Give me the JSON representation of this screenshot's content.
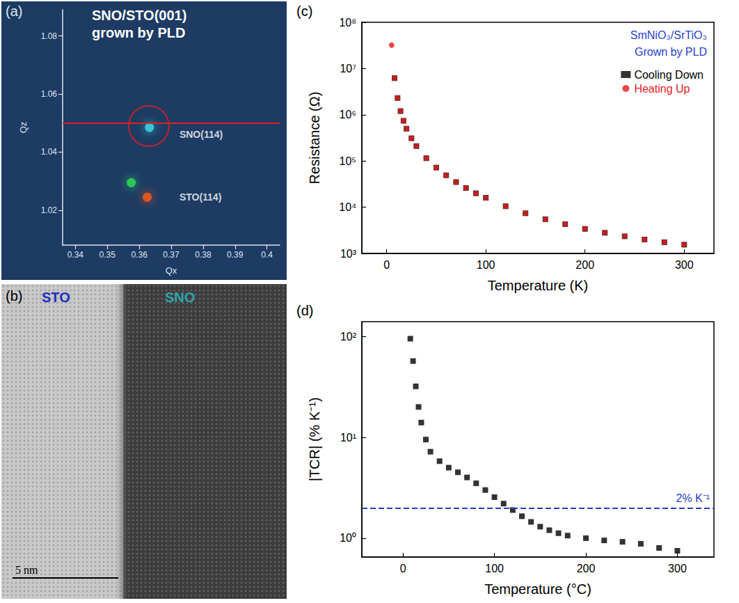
{
  "chart_data": [
    {
      "type": "scatter",
      "panel": "(a)",
      "title": [
        "SNO/STO(001)",
        "grown by PLD"
      ],
      "x_label": "Qx",
      "y_label": "Qz",
      "x": [
        0.3625,
        0.3632,
        0.3575
      ],
      "values": [
        1.0245,
        1.0485,
        1.0295
      ],
      "colors": [
        "#ff5a1a",
        "#3fd9e8",
        "#33dd55"
      ],
      "xlim": [
        0.336,
        0.404
      ],
      "ylim": [
        1.008,
        1.089
      ],
      "xticks": [
        0.34,
        0.35,
        0.36,
        0.37,
        0.38,
        0.39,
        0.4
      ],
      "yticks": [
        1.02,
        1.04,
        1.06,
        1.08
      ],
      "annotations": [
        {
          "text": "SNO(114)",
          "x": 0.3715,
          "y": 1.046
        },
        {
          "text": "STO(114)",
          "x": 0.3715,
          "y": 1.0245
        },
        {
          "shape": "circle",
          "x": 0.363,
          "y": 1.049
        },
        {
          "shape": "line",
          "y": 1.051
        }
      ]
    },
    {
      "type": "image",
      "panel": "(b)",
      "labels": [
        "STO",
        "SNO"
      ],
      "colors": [
        "#1f2fbf",
        "#2aa6a6"
      ],
      "scale_bar": "5 nm"
    },
    {
      "type": "scatter",
      "panel": "(c)",
      "x_label": "Temperature (K)",
      "y_label": "Resistance (Ω)",
      "annotations": [
        "SmNiO₃/SrTiO₃",
        "Grown by PLD"
      ],
      "log": "y",
      "legend": "upper right",
      "x": [
        5,
        8,
        11,
        14,
        17,
        20,
        25,
        30,
        40,
        50,
        60,
        70,
        80,
        90,
        100,
        120,
        140,
        160,
        180,
        200,
        220,
        240,
        260,
        280,
        300
      ],
      "series": [
        {
          "name": "Cooling Down",
          "color": "#000000",
          "marker": "square",
          "values": [
            null,
            6200000,
            2300000,
            1200000,
            740000,
            500000,
            310000,
            210000,
            115000,
            72000,
            49000,
            35000,
            26000,
            20000,
            16000,
            10500,
            7400,
            5500,
            4300,
            3400,
            2800,
            2350,
            2000,
            1750,
            1550
          ]
        },
        {
          "name": "Heating Up",
          "color": "#e41a1c",
          "marker": "circle",
          "values": [
            32000000,
            6200000,
            2300000,
            1200000,
            740000,
            500000,
            310000,
            210000,
            115000,
            72000,
            49000,
            35000,
            26000,
            20000,
            16000,
            10500,
            7400,
            5500,
            4300,
            3400,
            2800,
            2350,
            2000,
            1750,
            1550
          ]
        }
      ],
      "xlim": [
        -25,
        330
      ],
      "ylim": [
        1000,
        100000000
      ],
      "xticks": [
        0,
        100,
        200,
        300
      ],
      "yticks": [
        {
          "value": 1000,
          "label": "10³"
        },
        {
          "value": 10000,
          "label": "10⁴"
        },
        {
          "value": 100000,
          "label": "10⁵"
        },
        {
          "value": 1000000,
          "label": "10⁶"
        },
        {
          "value": 10000000,
          "label": "10⁷"
        },
        {
          "value": 100000000,
          "label": "10⁸"
        }
      ]
    },
    {
      "type": "scatter",
      "panel": "(d)",
      "x_label": "Temperature (°C)",
      "y_label": "|TCR| (% K⁻¹)",
      "log": "y",
      "color": "#000000",
      "marker": "square",
      "x": [
        8,
        11,
        14,
        17,
        20,
        25,
        30,
        40,
        50,
        60,
        70,
        80,
        90,
        100,
        110,
        120,
        130,
        140,
        150,
        160,
        170,
        180,
        200,
        220,
        240,
        260,
        280,
        300
      ],
      "values": [
        95,
        57,
        32,
        20,
        14,
        9.5,
        7.2,
        5.8,
        5.0,
        4.5,
        4.0,
        3.5,
        3.0,
        2.55,
        2.2,
        1.9,
        1.65,
        1.45,
        1.3,
        1.2,
        1.12,
        1.06,
        1.0,
        0.95,
        0.92,
        0.88,
        0.8,
        0.75
      ],
      "xlim": [
        -45,
        340
      ],
      "ylim": [
        0.65,
        140
      ],
      "xticks": [
        0,
        100,
        200,
        300
      ],
      "yticks": [
        {
          "value": 1,
          "label": "10⁰"
        },
        {
          "value": 10,
          "label": "10¹"
        },
        {
          "value": 100,
          "label": "10²"
        }
      ],
      "reference_line": {
        "value": 2,
        "label": "2% K⁻¹",
        "line_style": "dashed"
      }
    }
  ]
}
